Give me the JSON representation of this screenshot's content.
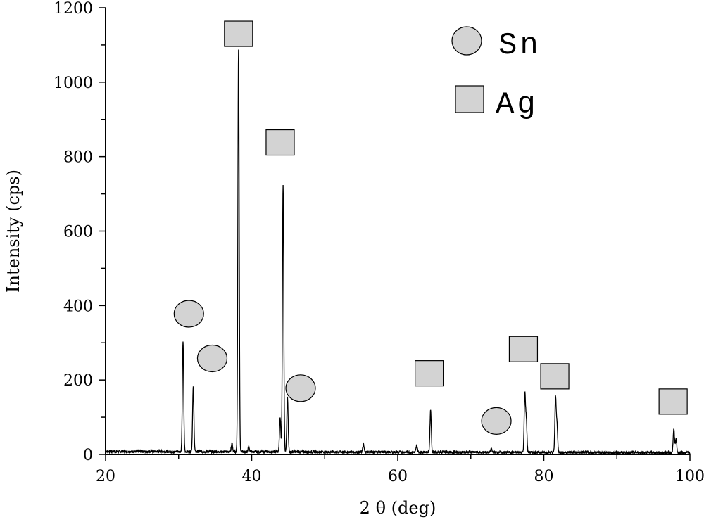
{
  "chart_data": {
    "type": "line",
    "title": "",
    "xlabel": "2 θ (deg)",
    "ylabel": "Intensity (cps)",
    "xlim": [
      20,
      100
    ],
    "ylim": [
      0,
      1200
    ],
    "x_ticks": [
      20,
      40,
      60,
      80,
      100
    ],
    "y_ticks": [
      0,
      200,
      400,
      600,
      800,
      1000,
      1200
    ],
    "grid": false,
    "legend_position": "top-right",
    "series": [
      {
        "color": "#000000",
        "baseline": 8,
        "peaks": [
          {
            "x": 30.6,
            "y": 305
          },
          {
            "x": 32.0,
            "y": 180
          },
          {
            "x": 37.3,
            "y": 30
          },
          {
            "x": 38.2,
            "y": 1090
          },
          {
            "x": 39.6,
            "y": 22
          },
          {
            "x": 43.9,
            "y": 100
          },
          {
            "x": 44.3,
            "y": 728
          },
          {
            "x": 44.9,
            "y": 155
          },
          {
            "x": 55.3,
            "y": 28
          },
          {
            "x": 62.6,
            "y": 26
          },
          {
            "x": 64.5,
            "y": 122
          },
          {
            "x": 72.8,
            "y": 16
          },
          {
            "x": 77.4,
            "y": 162
          },
          {
            "x": 77.6,
            "y": 92
          },
          {
            "x": 81.6,
            "y": 152
          },
          {
            "x": 81.8,
            "y": 80
          },
          {
            "x": 97.8,
            "y": 72
          },
          {
            "x": 98.1,
            "y": 45
          }
        ]
      }
    ],
    "legend": [
      {
        "marker": "circle",
        "label": "Sn",
        "fill": "#d3d3d3"
      },
      {
        "marker": "square",
        "label": "Ag",
        "fill": "#d3d3d3"
      }
    ],
    "annotations": [
      {
        "marker": "circle",
        "x": 31.4,
        "y": 378
      },
      {
        "marker": "circle",
        "x": 34.6,
        "y": 258
      },
      {
        "marker": "circle",
        "x": 46.7,
        "y": 178
      },
      {
        "marker": "circle",
        "x": 73.5,
        "y": 90
      },
      {
        "marker": "square",
        "x": 38.2,
        "y": 1130
      },
      {
        "marker": "square",
        "x": 43.9,
        "y": 838
      },
      {
        "marker": "square",
        "x": 64.3,
        "y": 218
      },
      {
        "marker": "square",
        "x": 77.2,
        "y": 283
      },
      {
        "marker": "square",
        "x": 81.5,
        "y": 210
      },
      {
        "marker": "square",
        "x": 97.7,
        "y": 142
      }
    ]
  }
}
